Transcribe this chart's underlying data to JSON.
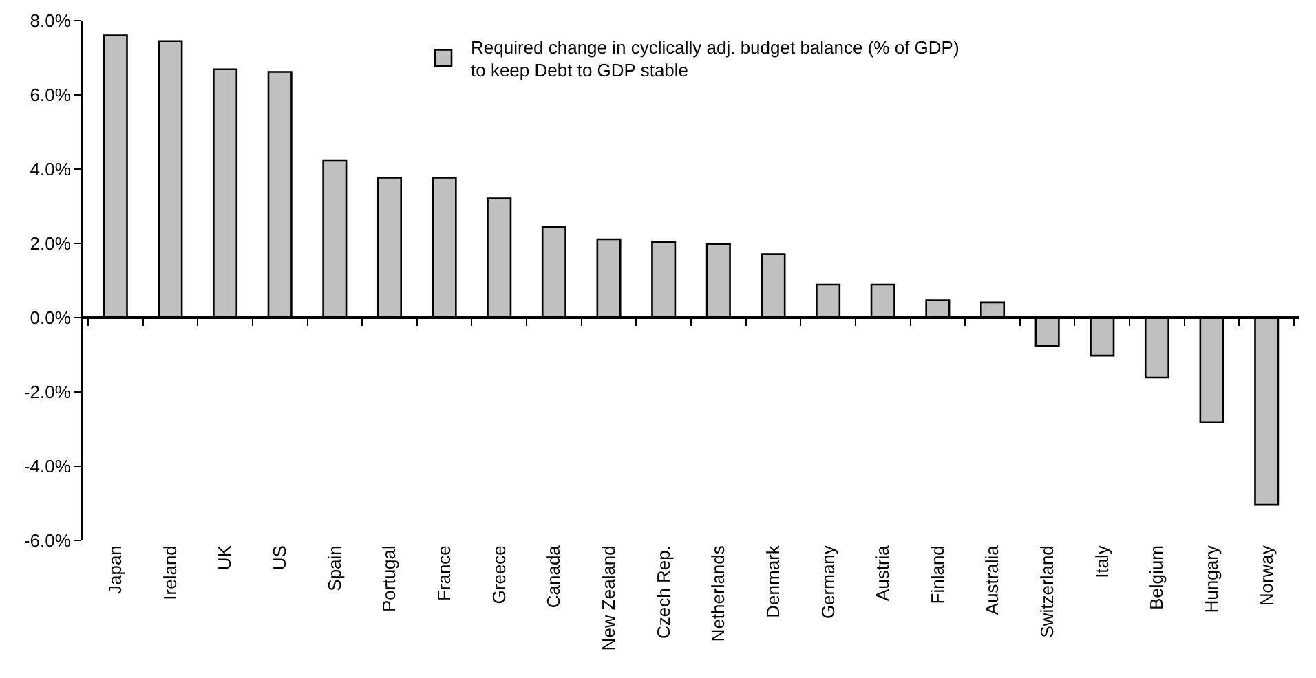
{
  "chart_data": {
    "type": "bar",
    "categories": [
      "Japan",
      "Ireland",
      "UK",
      "US",
      "Spain",
      "Portugal",
      "France",
      "Greece",
      "Canada",
      "New Zealand",
      "Czech Rep.",
      "Netherlands",
      "Denmark",
      "Germany",
      "Austria",
      "Finland",
      "Australia",
      "Switzerland",
      "Italy",
      "Belgium",
      "Hungary",
      "Norway"
    ],
    "series": [
      {
        "name": "Required change in cyclically adj. budget balance (% of GDP) to keep Debt to GDP stable",
        "color": "#c0c0c0",
        "values": [
          7.6,
          7.45,
          6.69,
          6.62,
          4.24,
          3.77,
          3.77,
          3.21,
          2.45,
          2.11,
          2.04,
          1.98,
          1.71,
          0.89,
          0.89,
          0.47,
          0.41,
          -0.76,
          -1.02,
          -1.61,
          -2.81,
          -5.04
        ]
      }
    ],
    "ylim": [
      -6,
      8
    ],
    "yticks": [
      {
        "value": -6,
        "label": "-6.0%"
      },
      {
        "value": -4,
        "label": "-4.0%"
      },
      {
        "value": -2,
        "label": "-2.0%"
      },
      {
        "value": 0,
        "label": "0.0%"
      },
      {
        "value": 2,
        "label": "2.0%"
      },
      {
        "value": 4,
        "label": "4.0%"
      },
      {
        "value": 6,
        "label": "6.0%"
      },
      {
        "value": 8,
        "label": "8.0%"
      }
    ],
    "legend": "top"
  }
}
